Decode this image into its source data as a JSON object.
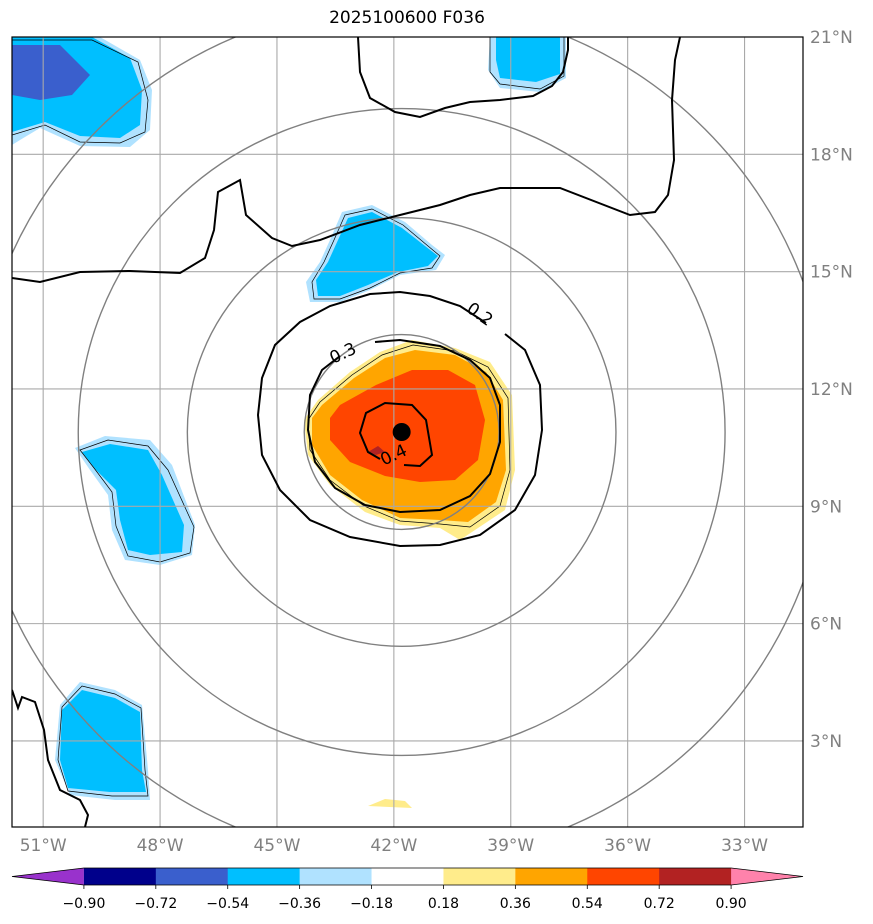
{
  "chart_data": {
    "type": "contour-map",
    "title": "2025100600 F036",
    "region": {
      "lon_range": [
        -51.8,
        -31.5
      ],
      "lat_range": [
        0.8,
        21.0
      ]
    },
    "x_ticks": [
      {
        "value": -51,
        "label": "51°W"
      },
      {
        "value": -48,
        "label": "48°W"
      },
      {
        "value": -45,
        "label": "45°W"
      },
      {
        "value": -42,
        "label": "42°W"
      },
      {
        "value": -39,
        "label": "39°W"
      },
      {
        "value": -36,
        "label": "36°W"
      },
      {
        "value": -33,
        "label": "33°W"
      }
    ],
    "y_ticks": [
      {
        "value": 3,
        "label": "3°N"
      },
      {
        "value": 6,
        "label": "6°N"
      },
      {
        "value": 9,
        "label": "9°N"
      },
      {
        "value": 12,
        "label": "12°N"
      },
      {
        "value": 15,
        "label": "15°N"
      },
      {
        "value": 18,
        "label": "18°N"
      },
      {
        "value": 21,
        "label": "21°N"
      }
    ],
    "storm_center": {
      "lon": -41.8,
      "lat": 10.9
    },
    "range_rings_deg": [
      2.5,
      5.5,
      8.3,
      11.0
    ],
    "contour_labels": [
      {
        "text": "0.2",
        "lon": -39.8,
        "lat": 13.9
      },
      {
        "text": "0.3",
        "lon": -43.3,
        "lat": 12.9
      },
      {
        "text": "0.4",
        "lon": -42.0,
        "lat": 10.3
      }
    ],
    "colorbar": {
      "levels": [
        -0.9,
        -0.72,
        -0.54,
        -0.36,
        -0.18,
        0.18,
        0.36,
        0.54,
        0.72,
        0.9
      ],
      "labels": [
        "−0.90",
        "−0.72",
        "−0.54",
        "−0.36",
        "−0.18",
        "0.18",
        "0.36",
        "0.54",
        "0.72",
        "0.90"
      ],
      "colors": [
        "#9932cc",
        "#00008b",
        "#3a5fcd",
        "#00bfff",
        "#b0e2ff",
        "#ffffff",
        "#ffec8b",
        "#ffa500",
        "#ff4500",
        "#b22222",
        "#ff82ab"
      ]
    }
  }
}
